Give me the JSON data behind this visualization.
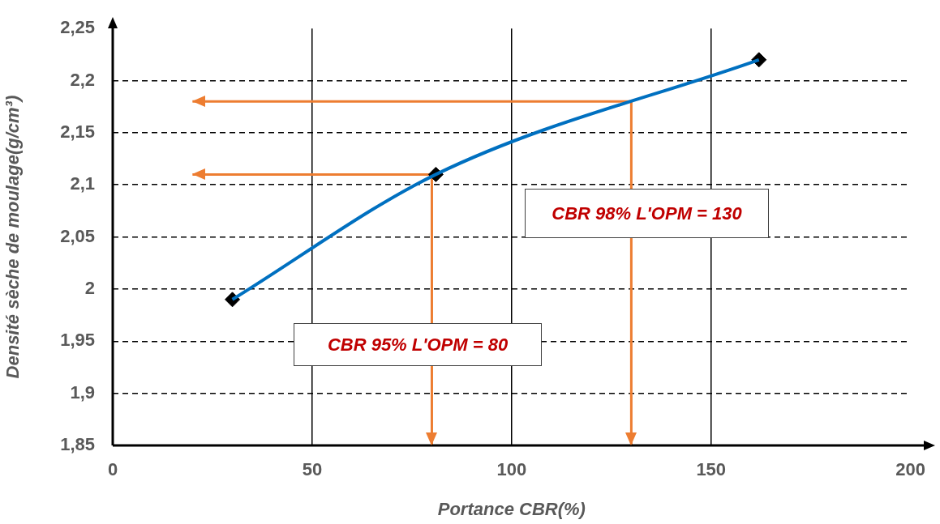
{
  "chart_data": {
    "type": "line",
    "xlabel": "Portance CBR(%)",
    "ylabel": "Densité sèche de moulage(g/cm³)",
    "xlim": [
      0,
      200
    ],
    "xticks": [
      0,
      50,
      100,
      150,
      200
    ],
    "ylim": [
      1.85,
      2.25
    ],
    "yticks": [
      {
        "value": 1.85,
        "label": "1,85"
      },
      {
        "value": 1.9,
        "label": "1,9"
      },
      {
        "value": 1.95,
        "label": "1,95"
      },
      {
        "value": 2,
        "label": "2"
      },
      {
        "value": 2.05,
        "label": "2,05"
      },
      {
        "value": 2.1,
        "label": "2,1"
      },
      {
        "value": 2.15,
        "label": "2,15"
      },
      {
        "value": 2.2,
        "label": "2,2"
      },
      {
        "value": 2.25,
        "label": "2,25"
      }
    ],
    "grid": true,
    "legend": false,
    "series": [
      {
        "color": "#0070c0",
        "x": [
          30,
          81,
          162
        ],
        "values": [
          1.99,
          2.11,
          2.22
        ],
        "marker": "none"
      },
      {
        "type": "scatter",
        "color": "#000000",
        "x": [
          30,
          81,
          162
        ],
        "values": [
          1.99,
          2.11,
          2.22
        ],
        "marker": "diamond"
      },
      {
        "type": "line",
        "color": "#ed7d31",
        "x": [
          20,
          130,
          130
        ],
        "values": [
          2.18,
          2.18,
          1.85
        ],
        "marker": "none"
      },
      {
        "type": "line",
        "color": "#ed7d31",
        "x": [
          20,
          80,
          80
        ],
        "values": [
          2.11,
          2.11,
          1.85
        ],
        "marker": "none"
      }
    ],
    "annotations": [
      "CBR 98% L'OPM = 130",
      "CBR 95% L'OPM = 80"
    ]
  }
}
